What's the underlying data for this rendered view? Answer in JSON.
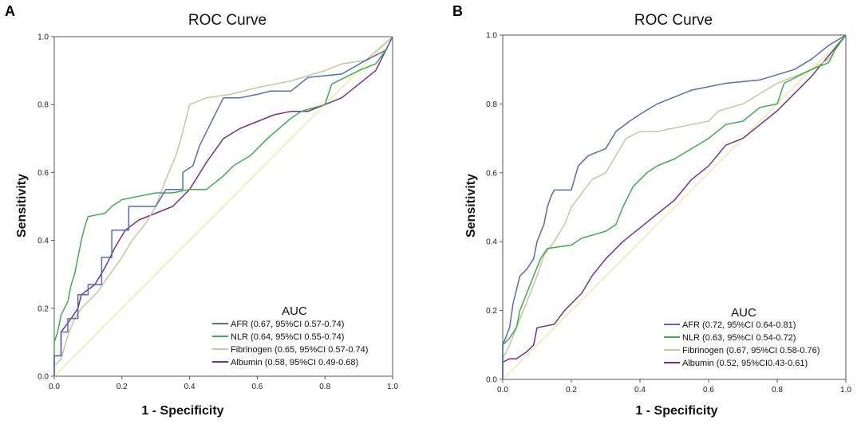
{
  "chart_data": [
    {
      "panel": "A",
      "type": "line",
      "title": "ROC Curve",
      "xlabel": "1 - Specificity",
      "ylabel": "Sensitivity",
      "xlim": [
        0,
        1
      ],
      "ylim": [
        0,
        1
      ],
      "xticks": [
        "0.0",
        "0.2",
        "0.4",
        "0.6",
        "0.8",
        "1.0"
      ],
      "yticks": [
        "0.0",
        "0.2",
        "0.4",
        "0.6",
        "0.8",
        "1.0"
      ],
      "legend_title": "AUC",
      "legend_position": "bottom-right",
      "reference_color": "#f0ecb0",
      "series": [
        {
          "name": "AFR",
          "label": "(0.67, 95%CI 0.57-0.74)",
          "color": "#4f6fb8",
          "points": [
            [
              0,
              0
            ],
            [
              0,
              0.06
            ],
            [
              0.02,
              0.06
            ],
            [
              0.02,
              0.13
            ],
            [
              0.04,
              0.13
            ],
            [
              0.04,
              0.17
            ],
            [
              0.07,
              0.17
            ],
            [
              0.07,
              0.24
            ],
            [
              0.1,
              0.24
            ],
            [
              0.1,
              0.27
            ],
            [
              0.14,
              0.27
            ],
            [
              0.14,
              0.35
            ],
            [
              0.17,
              0.35
            ],
            [
              0.17,
              0.43
            ],
            [
              0.22,
              0.43
            ],
            [
              0.22,
              0.5
            ],
            [
              0.3,
              0.5
            ],
            [
              0.33,
              0.55
            ],
            [
              0.38,
              0.55
            ],
            [
              0.38,
              0.6
            ],
            [
              0.41,
              0.62
            ],
            [
              0.43,
              0.68
            ],
            [
              0.47,
              0.76
            ],
            [
              0.5,
              0.82
            ],
            [
              0.55,
              0.82
            ],
            [
              0.6,
              0.83
            ],
            [
              0.64,
              0.84
            ],
            [
              0.7,
              0.84
            ],
            [
              0.75,
              0.88
            ],
            [
              0.85,
              0.89
            ],
            [
              0.92,
              0.93
            ],
            [
              0.98,
              0.96
            ],
            [
              1,
              1
            ]
          ]
        },
        {
          "name": "NLR",
          "label": "(0.64, 95%CI 0.55-0.74)",
          "color": "#3cae4a",
          "points": [
            [
              0,
              0
            ],
            [
              0,
              0.1
            ],
            [
              0.01,
              0.13
            ],
            [
              0.02,
              0.18
            ],
            [
              0.04,
              0.22
            ],
            [
              0.05,
              0.27
            ],
            [
              0.06,
              0.3
            ],
            [
              0.07,
              0.35
            ],
            [
              0.08,
              0.4
            ],
            [
              0.09,
              0.44
            ],
            [
              0.1,
              0.47
            ],
            [
              0.15,
              0.48
            ],
            [
              0.17,
              0.5
            ],
            [
              0.2,
              0.52
            ],
            [
              0.25,
              0.53
            ],
            [
              0.3,
              0.54
            ],
            [
              0.35,
              0.54
            ],
            [
              0.4,
              0.55
            ],
            [
              0.45,
              0.55
            ],
            [
              0.5,
              0.59
            ],
            [
              0.53,
              0.62
            ],
            [
              0.58,
              0.65
            ],
            [
              0.63,
              0.7
            ],
            [
              0.7,
              0.76
            ],
            [
              0.73,
              0.78
            ],
            [
              0.8,
              0.8
            ],
            [
              0.82,
              0.86
            ],
            [
              0.9,
              0.9
            ],
            [
              0.95,
              0.92
            ],
            [
              0.98,
              0.96
            ],
            [
              1,
              1
            ]
          ]
        },
        {
          "name": "Fibrinogen",
          "label": "(0.65, 95%CI 0.57-0.74)",
          "color": "#c9c6a0",
          "points": [
            [
              0,
              0
            ],
            [
              0,
              0.03
            ],
            [
              0.02,
              0.05
            ],
            [
              0.04,
              0.12
            ],
            [
              0.06,
              0.17
            ],
            [
              0.08,
              0.2
            ],
            [
              0.1,
              0.22
            ],
            [
              0.13,
              0.25
            ],
            [
              0.15,
              0.28
            ],
            [
              0.2,
              0.35
            ],
            [
              0.23,
              0.4
            ],
            [
              0.27,
              0.45
            ],
            [
              0.3,
              0.5
            ],
            [
              0.33,
              0.58
            ],
            [
              0.36,
              0.65
            ],
            [
              0.38,
              0.72
            ],
            [
              0.4,
              0.8
            ],
            [
              0.45,
              0.82
            ],
            [
              0.52,
              0.83
            ],
            [
              0.6,
              0.85
            ],
            [
              0.7,
              0.87
            ],
            [
              0.8,
              0.9
            ],
            [
              0.85,
              0.92
            ],
            [
              0.92,
              0.93
            ],
            [
              1,
              1
            ]
          ]
        },
        {
          "name": "Albumin",
          "label": "(0.58, 95%CI 0.49-0.68)",
          "color": "#7a2f87",
          "points": [
            [
              0,
              0
            ],
            [
              0,
              0.06
            ],
            [
              0.02,
              0.06
            ],
            [
              0.02,
              0.13
            ],
            [
              0.05,
              0.17
            ],
            [
              0.07,
              0.2
            ],
            [
              0.08,
              0.24
            ],
            [
              0.12,
              0.27
            ],
            [
              0.15,
              0.32
            ],
            [
              0.18,
              0.38
            ],
            [
              0.21,
              0.43
            ],
            [
              0.25,
              0.46
            ],
            [
              0.3,
              0.48
            ],
            [
              0.35,
              0.5
            ],
            [
              0.4,
              0.55
            ],
            [
              0.45,
              0.63
            ],
            [
              0.5,
              0.7
            ],
            [
              0.55,
              0.73
            ],
            [
              0.6,
              0.75
            ],
            [
              0.65,
              0.77
            ],
            [
              0.7,
              0.78
            ],
            [
              0.75,
              0.78
            ],
            [
              0.8,
              0.8
            ],
            [
              0.85,
              0.82
            ],
            [
              0.9,
              0.86
            ],
            [
              0.95,
              0.9
            ],
            [
              1,
              1
            ]
          ]
        }
      ]
    },
    {
      "panel": "B",
      "type": "line",
      "title": "ROC Curve",
      "xlabel": "1 - Specificity",
      "ylabel": "Sensitivity",
      "xlim": [
        0,
        1
      ],
      "ylim": [
        0,
        1
      ],
      "xticks": [
        "0.0",
        "0.2",
        "0.4",
        "0.6",
        "0.8",
        "1.0"
      ],
      "yticks": [
        "0.0",
        "0.2",
        "0.4",
        "0.6",
        "0.8",
        "1.0"
      ],
      "legend_title": "AUC",
      "legend_position": "bottom-right",
      "reference_color": "#f0ecb0",
      "series": [
        {
          "name": "AFR",
          "label": "(0.72, 95%CI 0.64-0.81)",
          "color": "#4f6fb8",
          "points": [
            [
              0,
              0
            ],
            [
              0,
              0.1
            ],
            [
              0.02,
              0.15
            ],
            [
              0.03,
              0.22
            ],
            [
              0.05,
              0.3
            ],
            [
              0.07,
              0.32
            ],
            [
              0.09,
              0.35
            ],
            [
              0.1,
              0.4
            ],
            [
              0.12,
              0.45
            ],
            [
              0.13,
              0.5
            ],
            [
              0.14,
              0.53
            ],
            [
              0.15,
              0.55
            ],
            [
              0.2,
              0.55
            ],
            [
              0.22,
              0.62
            ],
            [
              0.25,
              0.65
            ],
            [
              0.3,
              0.67
            ],
            [
              0.33,
              0.72
            ],
            [
              0.37,
              0.75
            ],
            [
              0.4,
              0.77
            ],
            [
              0.45,
              0.8
            ],
            [
              0.5,
              0.82
            ],
            [
              0.55,
              0.84
            ],
            [
              0.65,
              0.86
            ],
            [
              0.75,
              0.87
            ],
            [
              0.85,
              0.9
            ],
            [
              0.9,
              0.93
            ],
            [
              0.95,
              0.97
            ],
            [
              1,
              1
            ]
          ]
        },
        {
          "name": "NLR",
          "label": "(0.63, 95%CI 0.54-0.72)",
          "color": "#3cae4a",
          "points": [
            [
              0,
              0
            ],
            [
              0,
              0.1
            ],
            [
              0.02,
              0.12
            ],
            [
              0.04,
              0.15
            ],
            [
              0.05,
              0.2
            ],
            [
              0.07,
              0.25
            ],
            [
              0.09,
              0.3
            ],
            [
              0.11,
              0.35
            ],
            [
              0.13,
              0.38
            ],
            [
              0.2,
              0.39
            ],
            [
              0.23,
              0.41
            ],
            [
              0.3,
              0.43
            ],
            [
              0.33,
              0.45
            ],
            [
              0.35,
              0.5
            ],
            [
              0.38,
              0.56
            ],
            [
              0.42,
              0.6
            ],
            [
              0.45,
              0.62
            ],
            [
              0.5,
              0.64
            ],
            [
              0.55,
              0.67
            ],
            [
              0.6,
              0.7
            ],
            [
              0.65,
              0.74
            ],
            [
              0.7,
              0.75
            ],
            [
              0.75,
              0.79
            ],
            [
              0.8,
              0.8
            ],
            [
              0.82,
              0.86
            ],
            [
              0.9,
              0.9
            ],
            [
              0.95,
              0.92
            ],
            [
              0.97,
              0.96
            ],
            [
              1,
              1
            ]
          ]
        },
        {
          "name": "Fibrinogen",
          "label": "(0.67, 95%CI 0.58-0.76)",
          "color": "#c9c6a0",
          "points": [
            [
              0,
              0
            ],
            [
              0,
              0.06
            ],
            [
              0.02,
              0.1
            ],
            [
              0.04,
              0.15
            ],
            [
              0.06,
              0.2
            ],
            [
              0.08,
              0.25
            ],
            [
              0.1,
              0.3
            ],
            [
              0.12,
              0.36
            ],
            [
              0.15,
              0.4
            ],
            [
              0.18,
              0.45
            ],
            [
              0.2,
              0.5
            ],
            [
              0.23,
              0.54
            ],
            [
              0.26,
              0.58
            ],
            [
              0.3,
              0.6
            ],
            [
              0.33,
              0.65
            ],
            [
              0.36,
              0.7
            ],
            [
              0.4,
              0.72
            ],
            [
              0.45,
              0.72
            ],
            [
              0.5,
              0.73
            ],
            [
              0.55,
              0.74
            ],
            [
              0.6,
              0.75
            ],
            [
              0.63,
              0.78
            ],
            [
              0.7,
              0.8
            ],
            [
              0.75,
              0.83
            ],
            [
              0.8,
              0.86
            ],
            [
              0.9,
              0.9
            ],
            [
              0.95,
              0.93
            ],
            [
              1,
              1
            ]
          ]
        },
        {
          "name": "Albumin",
          "label": "(0.52, 95%CI0.43-0.61)",
          "color": "#7a2f87",
          "points": [
            [
              0,
              0
            ],
            [
              0,
              0.05
            ],
            [
              0.02,
              0.06
            ],
            [
              0.04,
              0.06
            ],
            [
              0.07,
              0.08
            ],
            [
              0.09,
              0.1
            ],
            [
              0.1,
              0.15
            ],
            [
              0.15,
              0.16
            ],
            [
              0.18,
              0.2
            ],
            [
              0.2,
              0.22
            ],
            [
              0.23,
              0.25
            ],
            [
              0.26,
              0.3
            ],
            [
              0.3,
              0.35
            ],
            [
              0.35,
              0.4
            ],
            [
              0.4,
              0.44
            ],
            [
              0.45,
              0.48
            ],
            [
              0.5,
              0.52
            ],
            [
              0.55,
              0.58
            ],
            [
              0.6,
              0.62
            ],
            [
              0.65,
              0.68
            ],
            [
              0.7,
              0.7
            ],
            [
              0.75,
              0.74
            ],
            [
              0.8,
              0.78
            ],
            [
              0.85,
              0.83
            ],
            [
              0.9,
              0.88
            ],
            [
              0.95,
              0.94
            ],
            [
              1,
              1
            ]
          ]
        }
      ]
    }
  ]
}
